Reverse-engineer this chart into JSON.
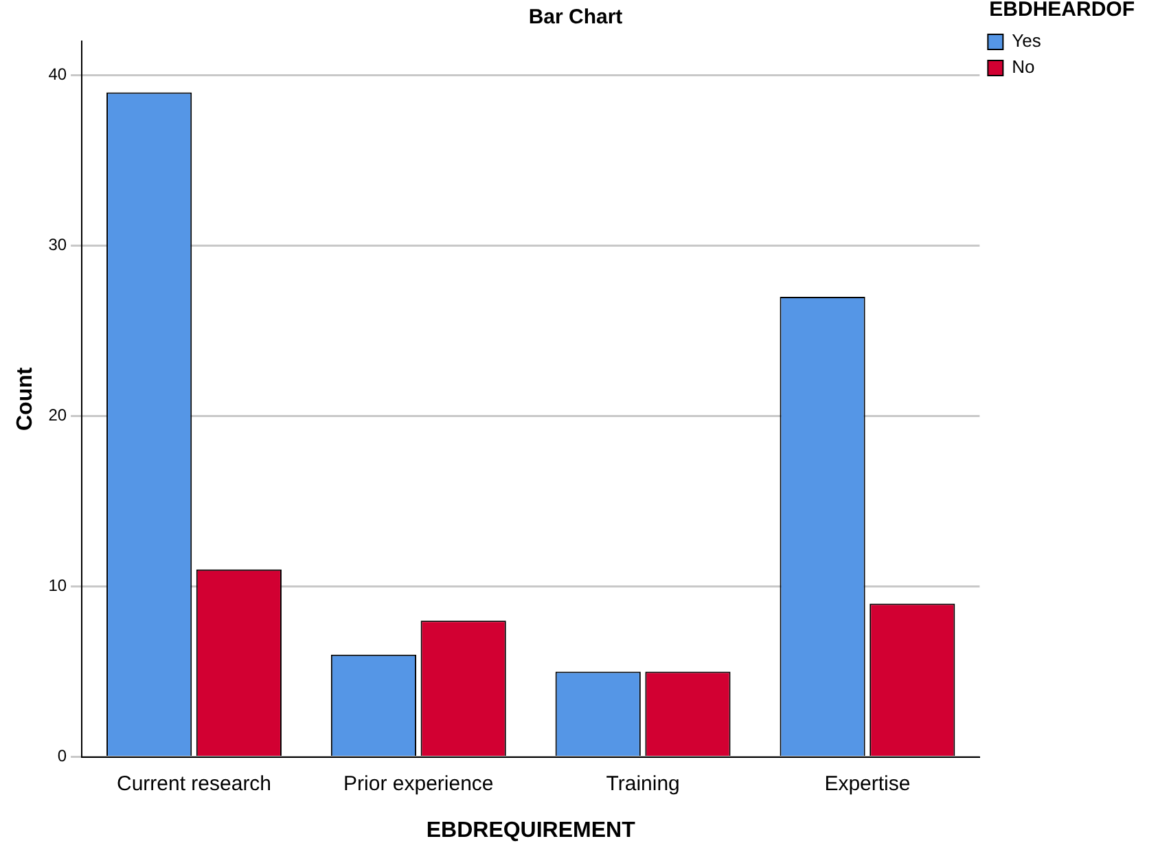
{
  "chart_data": {
    "type": "bar",
    "title": "Bar Chart",
    "xlabel": "EBDREQUIREMENT",
    "ylabel": "Count",
    "legend_title": "EBDHEARDOF",
    "categories": [
      "Current research",
      "Prior experience",
      "Training",
      "Expertise"
    ],
    "series": [
      {
        "name": "Yes",
        "color": "#5596e6",
        "values": [
          39,
          6,
          5,
          27
        ]
      },
      {
        "name": "No",
        "color": "#d20032",
        "values": [
          11,
          8,
          5,
          9
        ]
      }
    ],
    "ylim": [
      0,
      42
    ],
    "yticks": [
      0,
      10,
      20,
      30,
      40
    ],
    "grid": "y",
    "legend": "top right"
  }
}
